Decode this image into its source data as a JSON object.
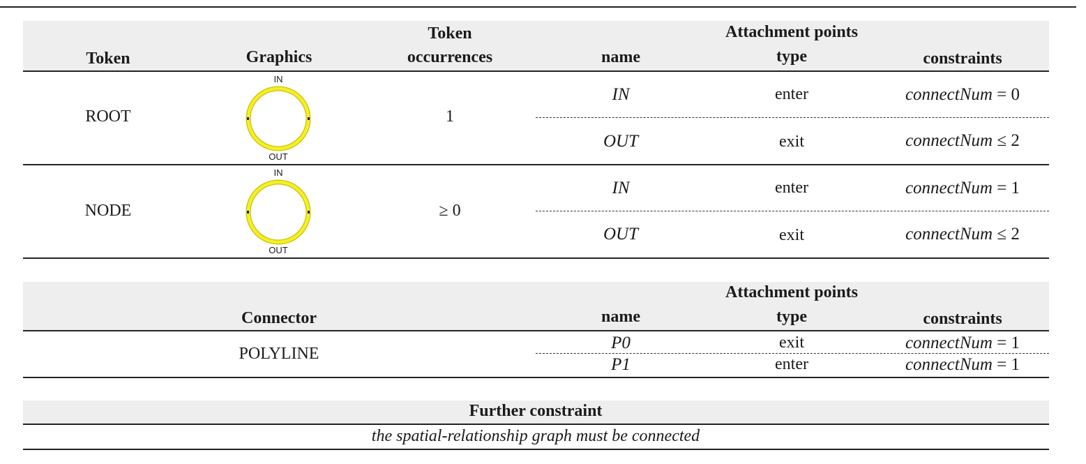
{
  "tokens_table": {
    "headers": {
      "token": "Token",
      "graphics": "Graphics",
      "occurrences": "Token occurrences",
      "occurrences_line1": "Token",
      "occurrences_line2": "occurrences",
      "attachment_points": "Attachment points",
      "name": "name",
      "type": "type",
      "constraints": "constraints"
    },
    "rows": [
      {
        "token": "ROOT",
        "graphic_labels": {
          "top": "IN",
          "bottom": "OUT"
        },
        "occurrences": "1",
        "attachments": [
          {
            "name": "IN",
            "type": "enter",
            "constraint_var": "connectNum",
            "constraint_op": "=",
            "constraint_val": "0"
          },
          {
            "name": "OUT",
            "type": "exit",
            "constraint_var": "connectNum",
            "constraint_op": "≤",
            "constraint_val": "2"
          }
        ]
      },
      {
        "token": "NODE",
        "graphic_labels": {
          "top": "IN",
          "bottom": "OUT"
        },
        "occurrences": "≥ 0",
        "attachments": [
          {
            "name": "IN",
            "type": "enter",
            "constraint_var": "connectNum",
            "constraint_op": "=",
            "constraint_val": "1"
          },
          {
            "name": "OUT",
            "type": "exit",
            "constraint_var": "connectNum",
            "constraint_op": "≤",
            "constraint_val": "2"
          }
        ]
      }
    ]
  },
  "connectors_table": {
    "headers": {
      "attachment_points": "Attachment points",
      "connector": "Connector",
      "name": "name",
      "type": "type",
      "constraints": "constraints"
    },
    "rows": [
      {
        "connector": "POLYLINE",
        "attachments": [
          {
            "name": "P0",
            "type": "exit",
            "constraint_var": "connectNum",
            "constraint_op": "=",
            "constraint_val": "1"
          },
          {
            "name": "P1",
            "type": "enter",
            "constraint_var": "connectNum",
            "constraint_op": "=",
            "constraint_val": "1"
          }
        ]
      }
    ]
  },
  "further_constraint": {
    "header": "Further constraint",
    "text": "the spatial-relationship graph must be connected"
  },
  "colors": {
    "glyph_fill": "#f5ef2a",
    "glyph_stroke": "#c9c200",
    "header_band": "#eeeeee",
    "rule": "#222222"
  }
}
